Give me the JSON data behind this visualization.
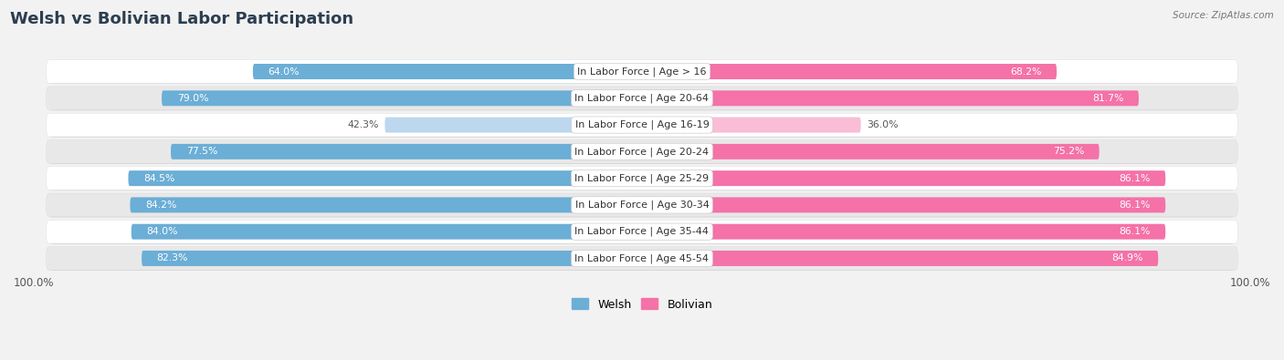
{
  "title": "Welsh vs Bolivian Labor Participation",
  "source": "Source: ZipAtlas.com",
  "categories": [
    "In Labor Force | Age > 16",
    "In Labor Force | Age 20-64",
    "In Labor Force | Age 16-19",
    "In Labor Force | Age 20-24",
    "In Labor Force | Age 25-29",
    "In Labor Force | Age 30-34",
    "In Labor Force | Age 35-44",
    "In Labor Force | Age 45-54"
  ],
  "welsh_values": [
    64.0,
    79.0,
    42.3,
    77.5,
    84.5,
    84.2,
    84.0,
    82.3
  ],
  "bolivian_values": [
    68.2,
    81.7,
    36.0,
    75.2,
    86.1,
    86.1,
    86.1,
    84.9
  ],
  "welsh_color": "#6BAED6",
  "welsh_color_light": "#BDD7EE",
  "bolivian_color": "#F472A8",
  "bolivian_color_light": "#F9BDD5",
  "bar_height": 0.58,
  "background_color": "#f2f2f2",
  "row_light": "#ffffff",
  "row_dark": "#e8e8e8",
  "max_val": 100.0,
  "xlim": 100.0,
  "title_fontsize": 13,
  "label_fontsize": 8.0,
  "value_fontsize": 7.8,
  "axis_label_fontsize": 8.5,
  "legend_fontsize": 9.0,
  "threshold_light": 55
}
